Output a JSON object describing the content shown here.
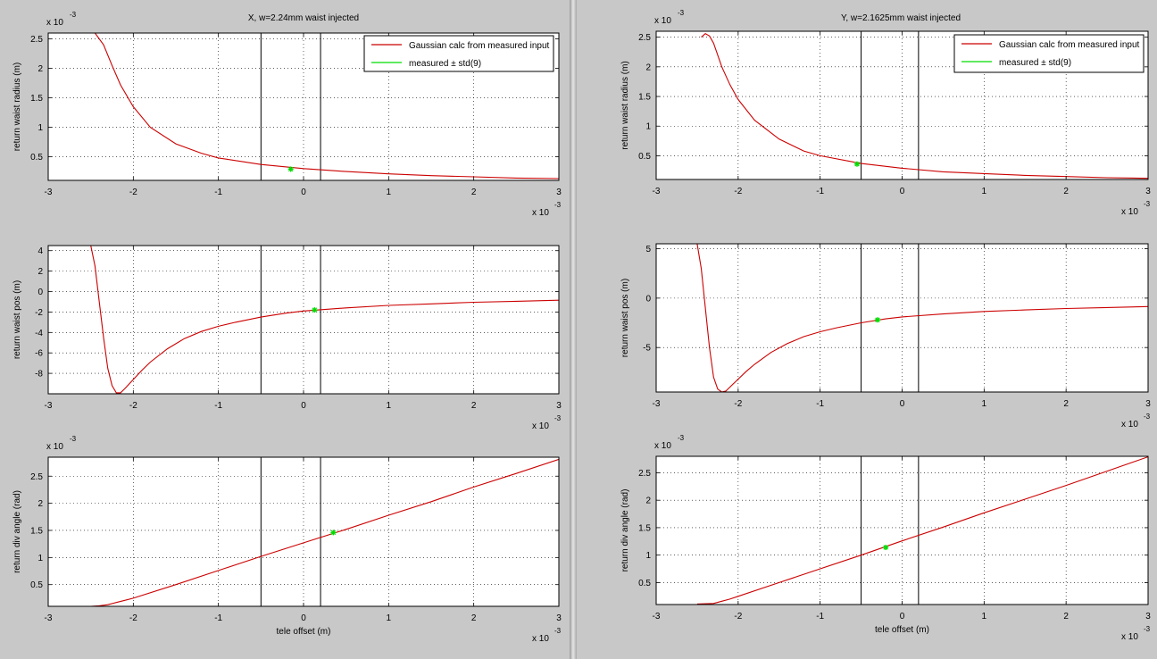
{
  "figures": [
    {
      "id": "left",
      "title": "X, w=2.24mm waist injected",
      "legend": {
        "model_label": "Gaussian calc from measured input",
        "measured_label": "measured ± std(9)"
      },
      "xlabel": "tele offset (m)",
      "x_exponent_label": "x 10",
      "x_exponent": "-3",
      "panels": [
        {
          "ylabel": "return waist radius (m)",
          "y_exponent": "-3"
        },
        {
          "ylabel": "return waist pos (m)",
          "y_exponent": ""
        },
        {
          "ylabel": "return div angle (rad)",
          "y_exponent": "-3"
        }
      ]
    },
    {
      "id": "right",
      "title": "Y, w=2.1625mm waist injected",
      "legend": {
        "model_label": "Gaussian calc from measured input",
        "measured_label": "measured ± std(9)"
      },
      "xlabel": "tele offset (m)",
      "x_exponent_label": "x 10",
      "x_exponent": "-3",
      "panels": [
        {
          "ylabel": "return waist radius (m)",
          "y_exponent": "-3"
        },
        {
          "ylabel": "return waist pos (m)",
          "y_exponent": ""
        },
        {
          "ylabel": "return div angle (rad)",
          "y_exponent": "-3"
        }
      ]
    }
  ],
  "chart_data": [
    {
      "type": "line",
      "figure": "left",
      "panel": "return waist radius",
      "title": "X, w=2.24mm waist injected",
      "xlabel": "",
      "ylabel": "return waist radius (m)",
      "x_scale": "x 10^-3",
      "y_scale": "x 10^-3",
      "xlim": [
        -3,
        3
      ],
      "ylim": [
        0.1,
        2.6
      ],
      "grid": true,
      "legend_position": "top-right",
      "x_ticks": [
        -3,
        -2,
        -1,
        0,
        1,
        2,
        3
      ],
      "y_ticks": [
        0.5,
        1,
        1.5,
        2,
        2.5
      ],
      "vlines": [
        -0.5,
        0.2
      ],
      "series": [
        {
          "name": "Gaussian calc from measured input",
          "color": "#cc0000",
          "x": [
            -2.45,
            -2.35,
            -2.25,
            -2.15,
            -2.0,
            -1.8,
            -1.5,
            -1.2,
            -1.0,
            -0.5,
            0,
            0.5,
            1.0,
            1.5,
            2.0,
            2.5,
            3.0
          ],
          "y": [
            2.6,
            2.4,
            2.05,
            1.72,
            1.35,
            1.0,
            0.72,
            0.56,
            0.48,
            0.37,
            0.3,
            0.25,
            0.21,
            0.18,
            0.16,
            0.14,
            0.13
          ]
        },
        {
          "name": "measured ± std(9)",
          "color": "#00dd00",
          "x": [
            -0.15
          ],
          "y": [
            0.29
          ]
        }
      ]
    },
    {
      "type": "line",
      "figure": "left",
      "panel": "return waist pos",
      "xlabel": "",
      "ylabel": "return waist pos (m)",
      "x_scale": "x 10^-3",
      "xlim": [
        -3,
        3
      ],
      "ylim": [
        -10,
        4.5
      ],
      "grid": true,
      "x_ticks": [
        -3,
        -2,
        -1,
        0,
        1,
        2,
        3
      ],
      "y_ticks": [
        -8,
        -6,
        -4,
        -2,
        0,
        2,
        4
      ],
      "vlines": [
        -0.5,
        0.2
      ],
      "series": [
        {
          "name": "Gaussian calc from measured input",
          "color": "#cc0000",
          "x": [
            -2.5,
            -2.45,
            -2.4,
            -2.35,
            -2.3,
            -2.25,
            -2.2,
            -2.15,
            -2.1,
            -2.0,
            -1.9,
            -1.8,
            -1.6,
            -1.4,
            -1.2,
            -1.0,
            -0.8,
            -0.5,
            -0.2,
            0,
            0.5,
            1.0,
            1.5,
            2.0,
            2.5,
            3.0
          ],
          "y": [
            4.5,
            2.5,
            -1.0,
            -4.5,
            -7.5,
            -9.2,
            -9.9,
            -9.9,
            -9.5,
            -8.6,
            -7.7,
            -6.9,
            -5.6,
            -4.6,
            -3.9,
            -3.4,
            -3.0,
            -2.5,
            -2.1,
            -1.9,
            -1.6,
            -1.35,
            -1.2,
            -1.05,
            -0.95,
            -0.85
          ]
        },
        {
          "name": "measured ± std(9)",
          "color": "#00dd00",
          "x": [
            0.13
          ],
          "y": [
            -1.8
          ]
        }
      ]
    },
    {
      "type": "line",
      "figure": "left",
      "panel": "return div angle",
      "xlabel": "tele offset (m)",
      "ylabel": "return div angle (rad)",
      "x_scale": "x 10^-3",
      "y_scale": "x 10^-3",
      "xlim": [
        -3,
        3
      ],
      "ylim": [
        0.1,
        2.85
      ],
      "grid": true,
      "x_ticks": [
        -3,
        -2,
        -1,
        0,
        1,
        2,
        3
      ],
      "y_ticks": [
        0.5,
        1,
        1.5,
        2,
        2.5
      ],
      "vlines": [
        -0.5,
        0.2
      ],
      "series": [
        {
          "name": "Gaussian calc from measured input",
          "color": "#cc0000",
          "x": [
            -2.5,
            -2.4,
            -2.3,
            -2.2,
            -2.1,
            -2.0,
            -1.5,
            -1.0,
            -0.5,
            0,
            0.5,
            1.0,
            1.5,
            2.0,
            2.5,
            3.0
          ],
          "y": [
            0.1,
            0.11,
            0.13,
            0.17,
            0.21,
            0.25,
            0.5,
            0.76,
            1.02,
            1.27,
            1.52,
            1.78,
            2.03,
            2.3,
            2.55,
            2.81
          ]
        },
        {
          "name": "measured ± std(9)",
          "color": "#00dd00",
          "x": [
            0.35
          ],
          "y": [
            1.46
          ]
        }
      ]
    },
    {
      "type": "line",
      "figure": "right",
      "panel": "return waist radius",
      "title": "Y, w=2.1625mm waist injected",
      "xlabel": "",
      "ylabel": "return waist radius (m)",
      "x_scale": "x 10^-3",
      "y_scale": "x 10^-3",
      "xlim": [
        -3,
        3
      ],
      "ylim": [
        0.1,
        2.6
      ],
      "grid": true,
      "legend_position": "top-right",
      "x_ticks": [
        -3,
        -2,
        -1,
        0,
        1,
        2,
        3
      ],
      "y_ticks": [
        0.5,
        1,
        1.5,
        2,
        2.5
      ],
      "vlines": [
        -0.5,
        0.2
      ],
      "series": [
        {
          "name": "Gaussian calc from measured input",
          "color": "#cc0000",
          "x": [
            -2.45,
            -2.4,
            -2.35,
            -2.3,
            -2.2,
            -2.1,
            -2.0,
            -1.8,
            -1.5,
            -1.2,
            -1.0,
            -0.5,
            0,
            0.5,
            1.0,
            1.5,
            2.0,
            2.5,
            3.0
          ],
          "y": [
            2.5,
            2.56,
            2.52,
            2.4,
            2.0,
            1.7,
            1.45,
            1.1,
            0.78,
            0.58,
            0.5,
            0.37,
            0.29,
            0.23,
            0.2,
            0.17,
            0.15,
            0.13,
            0.12
          ]
        },
        {
          "name": "measured ± std(9)",
          "color": "#00dd00",
          "x": [
            -0.55
          ],
          "y": [
            0.36
          ]
        }
      ]
    },
    {
      "type": "line",
      "figure": "right",
      "panel": "return waist pos",
      "xlabel": "",
      "ylabel": "return waist pos (m)",
      "x_scale": "x 10^-3",
      "xlim": [
        -3,
        3
      ],
      "ylim": [
        -9.5,
        5.5
      ],
      "grid": true,
      "x_ticks": [
        -3,
        -2,
        -1,
        0,
        1,
        2,
        3
      ],
      "y_ticks": [
        -5,
        0,
        5
      ],
      "vlines": [
        -0.5,
        0.2
      ],
      "series": [
        {
          "name": "Gaussian calc from measured input",
          "color": "#cc0000",
          "x": [
            -2.5,
            -2.45,
            -2.4,
            -2.35,
            -2.3,
            -2.25,
            -2.2,
            -2.15,
            -2.1,
            -2.0,
            -1.9,
            -1.8,
            -1.6,
            -1.4,
            -1.2,
            -1.0,
            -0.8,
            -0.5,
            -0.2,
            0,
            0.5,
            1.0,
            1.5,
            2.0,
            2.5,
            3.0
          ],
          "y": [
            5.5,
            3.0,
            -1.0,
            -5.0,
            -8.0,
            -9.2,
            -9.5,
            -9.4,
            -9.0,
            -8.2,
            -7.4,
            -6.7,
            -5.5,
            -4.6,
            -3.9,
            -3.4,
            -3.0,
            -2.5,
            -2.1,
            -1.9,
            -1.6,
            -1.35,
            -1.2,
            -1.05,
            -0.95,
            -0.85
          ]
        },
        {
          "name": "measured ± std(9)",
          "color": "#00dd00",
          "x": [
            -0.3
          ],
          "y": [
            -2.2
          ]
        }
      ]
    },
    {
      "type": "line",
      "figure": "right",
      "panel": "return div angle",
      "xlabel": "tele offset (m)",
      "ylabel": "return div angle (rad)",
      "x_scale": "x 10^-3",
      "y_scale": "x 10^-3",
      "xlim": [
        -3,
        3
      ],
      "ylim": [
        0.1,
        2.8
      ],
      "grid": true,
      "x_ticks": [
        -3,
        -2,
        -1,
        0,
        1,
        2,
        3
      ],
      "y_ticks": [
        0.5,
        1,
        1.5,
        2,
        2.5
      ],
      "vlines": [
        -0.5,
        0.2
      ],
      "series": [
        {
          "name": "Gaussian calc from measured input",
          "color": "#cc0000",
          "x": [
            -2.5,
            -2.3,
            -2.2,
            -2.1,
            -2.0,
            -1.5,
            -1.0,
            -0.5,
            0,
            0.5,
            1.0,
            1.5,
            2.0,
            2.5,
            3.0
          ],
          "y": [
            0.11,
            0.12,
            0.16,
            0.2,
            0.25,
            0.5,
            0.75,
            1.0,
            1.26,
            1.51,
            1.77,
            2.02,
            2.27,
            2.53,
            2.79
          ]
        },
        {
          "name": "measured ± std(9)",
          "color": "#00dd00",
          "x": [
            -0.2
          ],
          "y": [
            1.14
          ]
        }
      ]
    }
  ]
}
